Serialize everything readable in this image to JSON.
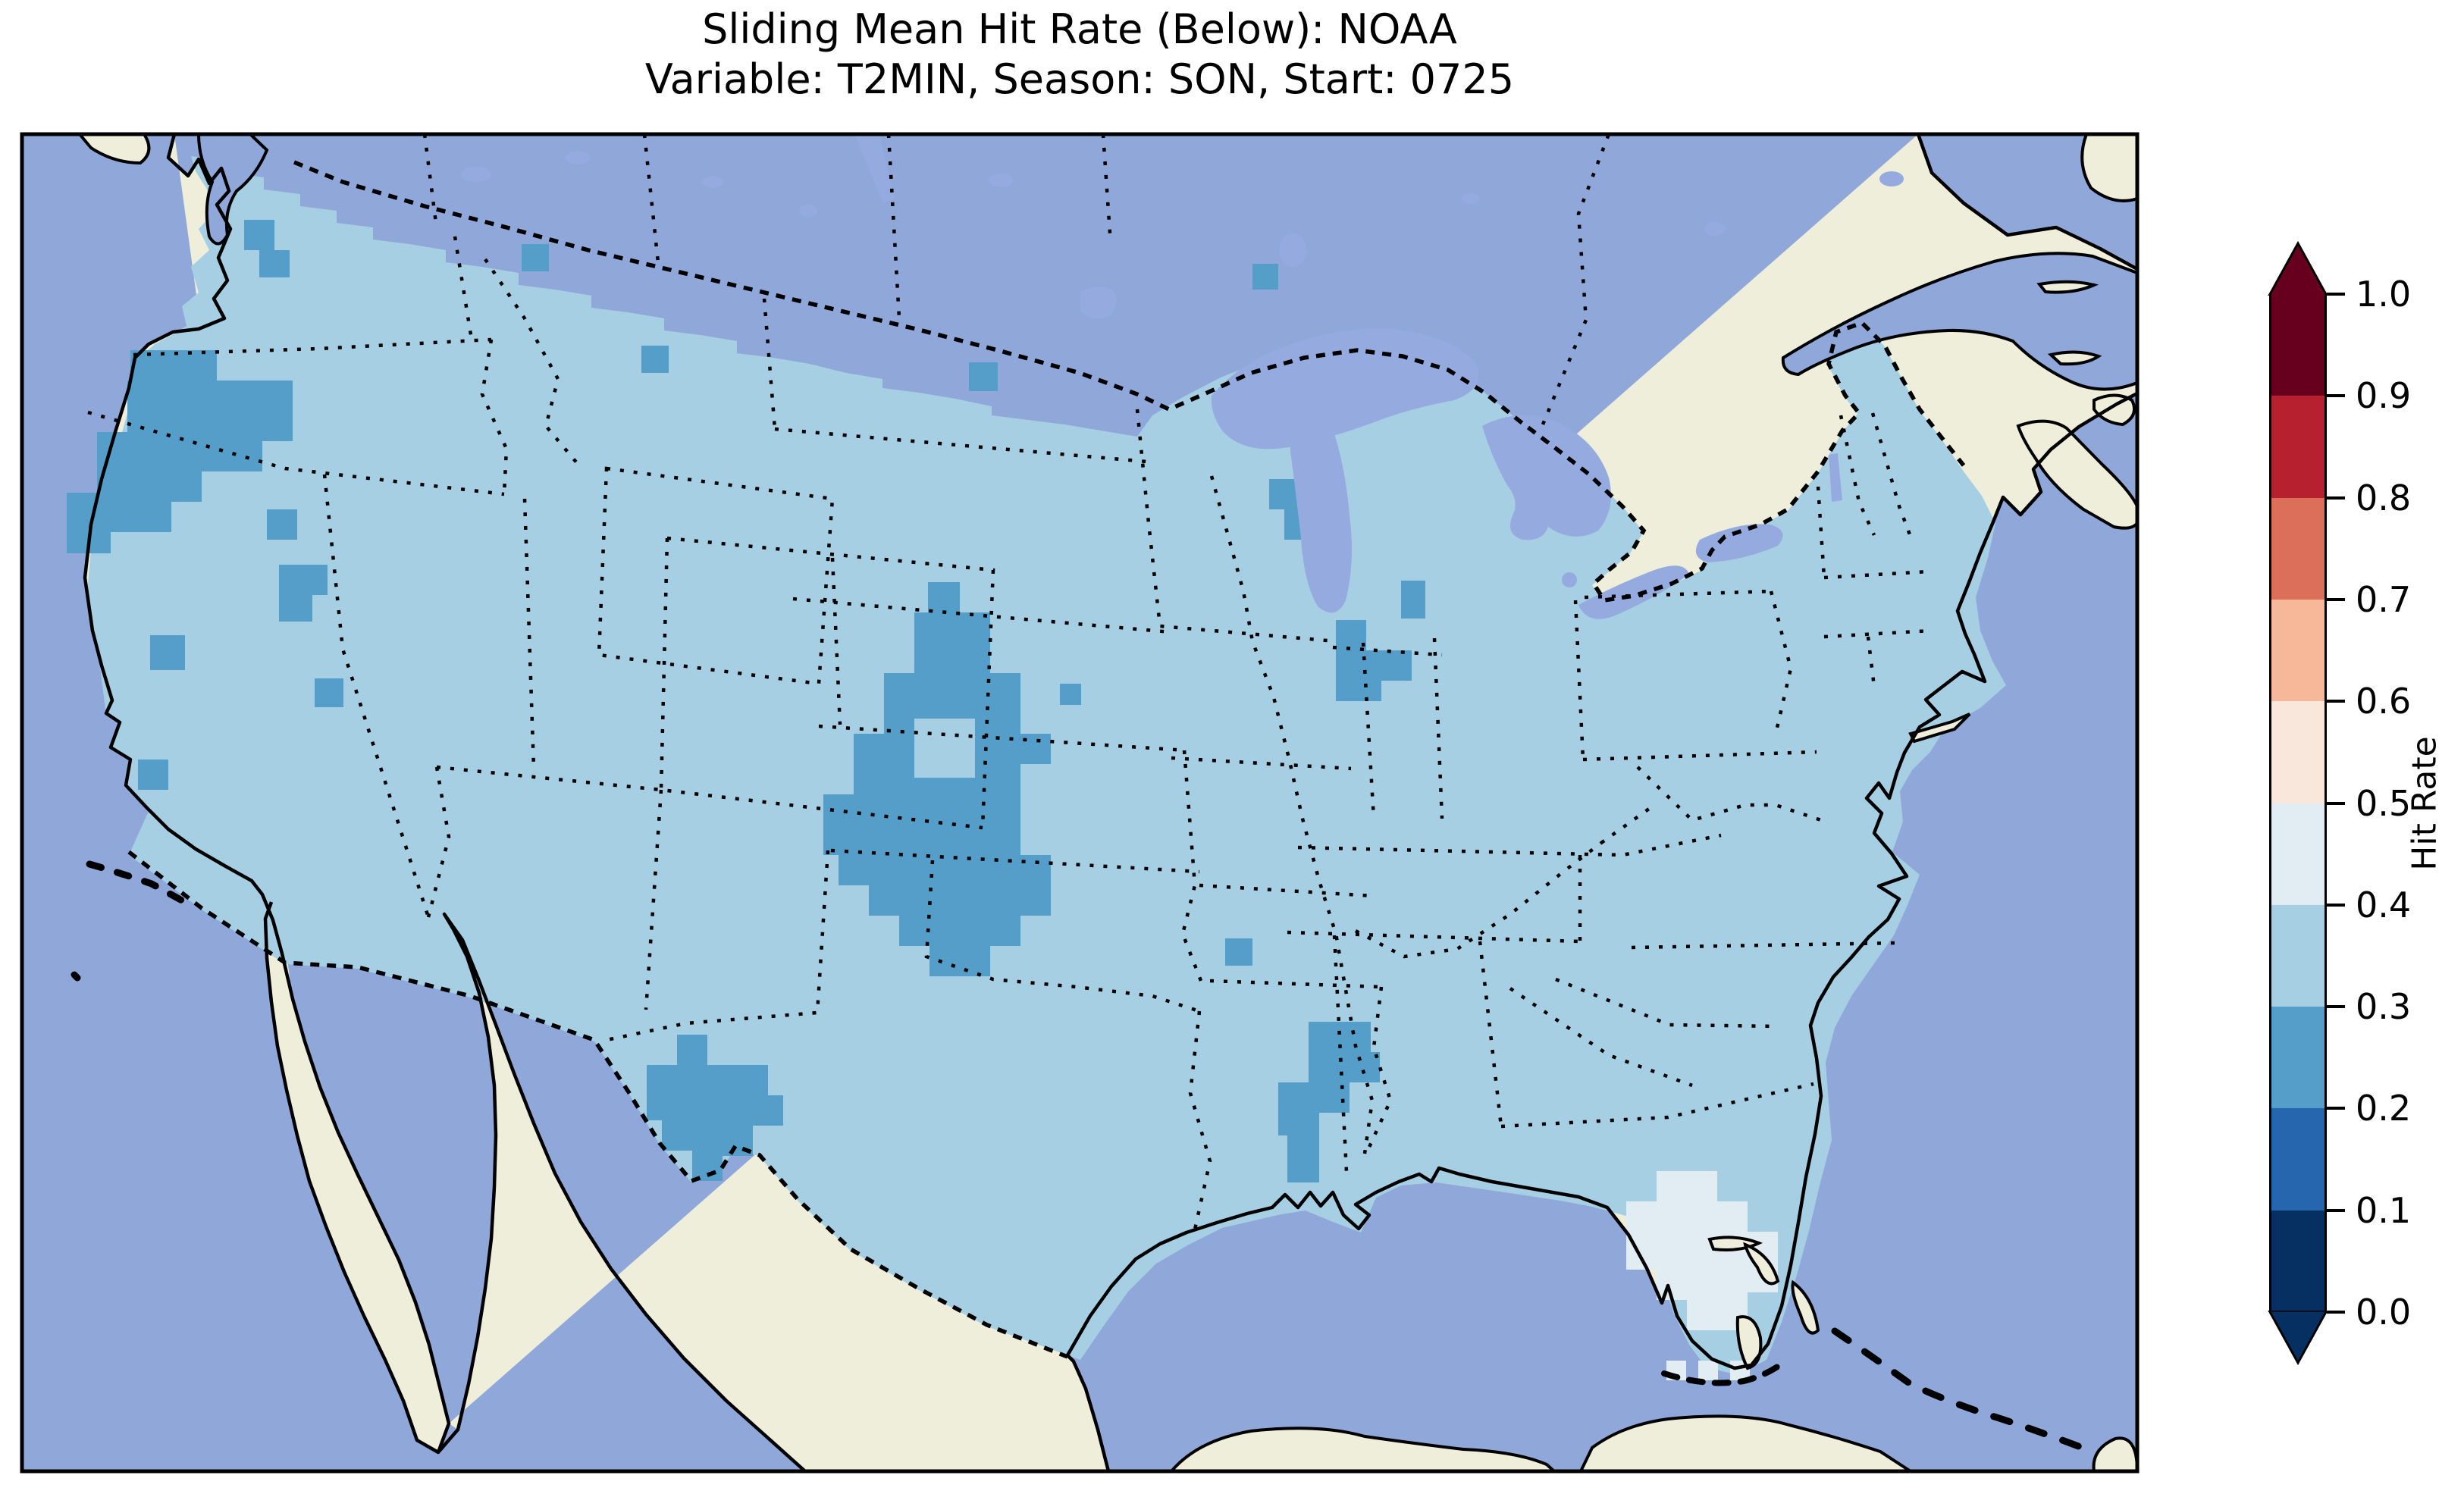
{
  "title": {
    "line1": "Sliding Mean Hit Rate (Below): NOAA",
    "line2": "Variable: T2MIN, Season: SON, Start: 0725"
  },
  "colorbar": {
    "label": "Hit Rate",
    "ticks": [
      "1.0",
      "0.9",
      "0.8",
      "0.7",
      "0.6",
      "0.5",
      "0.4",
      "0.3",
      "0.2",
      "0.1",
      "0.0"
    ],
    "segments": [
      {
        "range": "0.0-0.1",
        "color": "#053061"
      },
      {
        "range": "0.1-0.2",
        "color": "#2566ae"
      },
      {
        "range": "0.2-0.3",
        "color": "#549ec9"
      },
      {
        "range": "0.3-0.4",
        "color": "#a7cfe4"
      },
      {
        "range": "0.4-0.5",
        "color": "#e2edf3"
      },
      {
        "range": "0.5-0.6",
        "color": "#fae7dc"
      },
      {
        "range": "0.6-0.7",
        "color": "#f7b799"
      },
      {
        "range": "0.7-0.8",
        "color": "#dc6f59"
      },
      {
        "range": "0.8-0.9",
        "color": "#b6202f"
      },
      {
        "range": "0.9-1.0",
        "color": "#67001f"
      }
    ],
    "under_color": "#053061",
    "over_color": "#67001f",
    "outline_color": "#000000"
  },
  "map": {
    "colors": {
      "ocean": "#8fa7d9",
      "land": "#efeedb",
      "lake": "#95abdf",
      "coastline": "#000000",
      "border": "#000000",
      "bin_0_3_to_0_4": "#a7cfe4",
      "bin_0_2_to_0_3": "#549ec9",
      "bin_0_4_to_0_5": "#e2edf3"
    }
  },
  "chart_data": {
    "type": "heatmap",
    "title": "Sliding Mean Hit Rate (Below): NOAA",
    "subtitle": "Variable: T2MIN, Season: SON, Start: 0725",
    "metric": "Sliding Mean Hit Rate (Below)",
    "source": "NOAA",
    "variable": "T2MIN",
    "season": "SON",
    "start": "0725",
    "legend_label": "Hit Rate",
    "legend_position": "right",
    "value_range": [
      0.0,
      1.0
    ],
    "bin_size": 0.1,
    "colormap": "RdBu_r (discrete, 10 bins, extended arrows both ends)",
    "domain": "Contiguous United States (CONUS) gridded field over North America basemap",
    "dominant_bin": "0.3-0.4",
    "regions": [
      {
        "name": "CONUS overall (dominant value)",
        "hit_rate_bin": "0.3-0.4"
      },
      {
        "name": "Western Washington patch",
        "hit_rate_bin": "0.2-0.3"
      },
      {
        "name": "Oregon / Northern California blob",
        "hit_rate_bin": "0.2-0.3"
      },
      {
        "name": "Nevada scattered patches",
        "hit_rate_bin": "0.2-0.3"
      },
      {
        "name": "Central California small cells",
        "hit_rate_bin": "0.2-0.3"
      },
      {
        "name": "Central Plains Nebraska-Kansas blob (with 0.3-0.4 hole)",
        "hit_rate_bin": "0.2-0.3"
      },
      {
        "name": "West Texas (Big Bend) patch",
        "hit_rate_bin": "0.2-0.3"
      },
      {
        "name": "Southern Mississippi / Alabama patch",
        "hit_rate_bin": "0.2-0.3"
      },
      {
        "name": "Northwest Mississippi cell",
        "hit_rate_bin": "0.2-0.3"
      },
      {
        "name": "Eastern Wisconsin patch (Lake Michigan shore)",
        "hit_rate_bin": "0.2-0.3"
      },
      {
        "name": "Northern Indiana / Illinois patch",
        "hit_rate_bin": "0.2-0.3"
      },
      {
        "name": "Scattered single cells (Montana, North Dakota, Iowa, Upper Michigan)",
        "hit_rate_bin": "0.2-0.3"
      },
      {
        "name": "South Florida peninsula",
        "hit_rate_bin": "0.4-0.5"
      },
      {
        "name": "Cells south of Florida tip",
        "hit_rate_bin": "0.4-0.5"
      }
    ]
  }
}
